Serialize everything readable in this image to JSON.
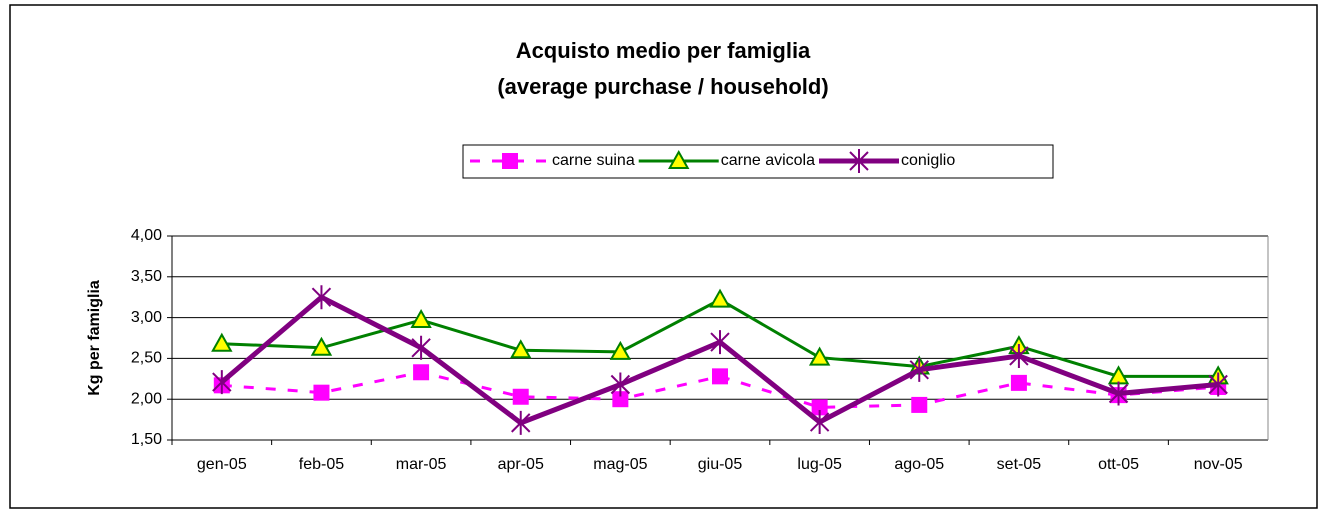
{
  "chart_data": {
    "type": "line",
    "title": "Acquisto medio per famiglia",
    "subtitle": "(average purchase / household)",
    "y_label": "Kg per famiglia",
    "categories": [
      "gen-05",
      "feb-05",
      "mar-05",
      "apr-05",
      "mag-05",
      "giu-05",
      "lug-05",
      "ago-05",
      "set-05",
      "ott-05",
      "nov-05"
    ],
    "series": [
      {
        "name": "carne suina",
        "color": "#ff00ff",
        "text_color": "#ff00ff",
        "marker": "square",
        "dash": true,
        "values": [
          2.17,
          2.08,
          2.33,
          2.03,
          2.0,
          2.28,
          1.9,
          1.93,
          2.2,
          2.05,
          2.15
        ]
      },
      {
        "name": "carne avicola",
        "color": "#008000",
        "text_color": "#008000",
        "marker": "triangle",
        "dash": false,
        "values": [
          2.68,
          2.63,
          2.97,
          2.6,
          2.58,
          3.22,
          2.51,
          2.4,
          2.65,
          2.28,
          2.28
        ]
      },
      {
        "name": "coniglio",
        "color": "#800080",
        "text_color": "#000000",
        "marker": "star",
        "dash": false,
        "values": [
          2.21,
          3.25,
          2.63,
          1.71,
          2.18,
          2.7,
          1.72,
          2.36,
          2.53,
          2.07,
          2.18
        ]
      }
    ],
    "ylim": [
      1.5,
      4.0
    ],
    "yticks": [
      {
        "value": 1.5,
        "label": "1,50"
      },
      {
        "value": 2.0,
        "label": "2,00"
      },
      {
        "value": 2.5,
        "label": "2,50"
      },
      {
        "value": 3.0,
        "label": "3,00"
      },
      {
        "value": 3.5,
        "label": "3,50"
      },
      {
        "value": 4.0,
        "label": "4,00"
      }
    ],
    "grid": true,
    "legend": "top"
  }
}
